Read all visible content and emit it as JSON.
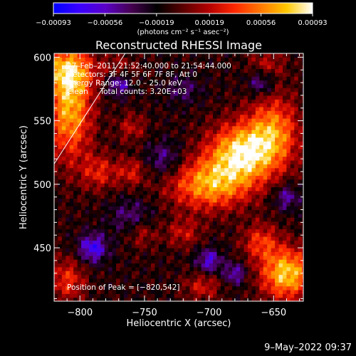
{
  "chart_data": {
    "type": "heatmap",
    "title": "Reconstructed RHESSI Image",
    "xlabel": "Heliocentric X (arcsec)",
    "ylabel": "Heliocentric Y (arcsec)",
    "xlim": [
      -820,
      -627
    ],
    "ylim": [
      408,
      603
    ],
    "x_ticks": [
      {
        "value": -800,
        "label": "−800"
      },
      {
        "value": -750,
        "label": "−750"
      },
      {
        "value": -700,
        "label": "−700"
      },
      {
        "value": -650,
        "label": "−650"
      }
    ],
    "y_ticks": [
      {
        "value": 450,
        "label": "450"
      },
      {
        "value": 500,
        "label": "500"
      },
      {
        "value": 550,
        "label": "550"
      },
      {
        "value": 600,
        "label": "600"
      }
    ],
    "colorbar": {
      "min": -0.00093,
      "max": 0.00093,
      "unit_label": "(photons cm⁻² s⁻¹ asec⁻²)",
      "ticks": [
        {
          "value": -0.00093,
          "label": "−0.00093"
        },
        {
          "value": -0.00056,
          "label": "−0.00056"
        },
        {
          "value": -0.00019,
          "label": "−0.00019"
        },
        {
          "value": 0.00019,
          "label": "0.00019"
        },
        {
          "value": 0.00056,
          "label": "0.00056"
        },
        {
          "value": 0.00093,
          "label": "0.00093"
        }
      ],
      "colors": [
        "#0000ff",
        "#3a00ff",
        "#5a00c8",
        "#460050",
        "#000000",
        "#5a0000",
        "#b40000",
        "#ff2800",
        "#ff7800",
        "#ffc800",
        "#ffffff"
      ]
    },
    "annotations": [
      "27–Feb–2011 21:52:40.000 to 21:54:44.000",
      "Detectors: 3F 4F 5F 6F 7F 8F, Att 0",
      "Energy Range: 12.0 – 25.0 keV",
      "Clean     Total counts: 3.20E+03"
    ],
    "peak_label": "Position of Peak = [−820,542]",
    "peak": {
      "x": -820,
      "y": 542
    },
    "limb_line": [
      [
        -820,
        516
      ],
      [
        -765,
        603
      ]
    ],
    "sources": [
      {
        "x": -675,
        "y": 525,
        "amp": 0.00093,
        "sx": 18,
        "sy": 16
      },
      {
        "x": -700,
        "y": 500,
        "amp": 0.00075,
        "sx": 22,
        "sy": 14
      },
      {
        "x": -650,
        "y": 542,
        "amp": 0.00065,
        "sx": 14,
        "sy": 20
      },
      {
        "x": -808,
        "y": 560,
        "amp": 0.0008,
        "sx": 12,
        "sy": 28
      },
      {
        "x": -810,
        "y": 590,
        "amp": 0.0006,
        "sx": 14,
        "sy": 12
      },
      {
        "x": -640,
        "y": 430,
        "amp": 0.0009,
        "sx": 14,
        "sy": 14
      },
      {
        "x": -660,
        "y": 455,
        "amp": 0.00045,
        "sx": 10,
        "sy": 10
      },
      {
        "x": -785,
        "y": 510,
        "amp": 0.0004,
        "sx": 10,
        "sy": 10
      },
      {
        "x": -760,
        "y": 510,
        "amp": 0.00035,
        "sx": 8,
        "sy": 8
      },
      {
        "x": -810,
        "y": 425,
        "amp": 0.00045,
        "sx": 10,
        "sy": 12
      },
      {
        "x": -760,
        "y": 545,
        "amp": 0.0003,
        "sx": 8,
        "sy": 8
      },
      {
        "x": -720,
        "y": 462,
        "amp": 0.00032,
        "sx": 10,
        "sy": 8
      },
      {
        "x": -752,
        "y": 462,
        "amp": 0.0003,
        "sx": 8,
        "sy": 8
      },
      {
        "x": -705,
        "y": 420,
        "amp": 0.00035,
        "sx": 10,
        "sy": 8
      },
      {
        "x": -770,
        "y": 590,
        "amp": 0.0003,
        "sx": 10,
        "sy": 8
      },
      {
        "x": -655,
        "y": 595,
        "amp": 0.00028,
        "sx": 10,
        "sy": 8
      },
      {
        "x": -735,
        "y": 520,
        "amp": -0.00035,
        "sx": 10,
        "sy": 10
      },
      {
        "x": -790,
        "y": 450,
        "amp": -0.0006,
        "sx": 8,
        "sy": 8
      },
      {
        "x": -770,
        "y": 580,
        "amp": -0.00055,
        "sx": 7,
        "sy": 7
      },
      {
        "x": -700,
        "y": 440,
        "amp": -0.0005,
        "sx": 7,
        "sy": 7
      },
      {
        "x": -680,
        "y": 430,
        "amp": -0.00045,
        "sx": 6,
        "sy": 6
      },
      {
        "x": -660,
        "y": 580,
        "amp": -0.0004,
        "sx": 7,
        "sy": 7
      },
      {
        "x": -640,
        "y": 490,
        "amp": -0.0004,
        "sx": 7,
        "sy": 7
      },
      {
        "x": -760,
        "y": 475,
        "amp": -0.0003,
        "sx": 12,
        "sy": 10
      },
      {
        "x": -720,
        "y": 575,
        "amp": -0.00025,
        "sx": 10,
        "sy": 8
      }
    ]
  },
  "footer": {
    "timestamp": "9–May–2022 09:37"
  }
}
